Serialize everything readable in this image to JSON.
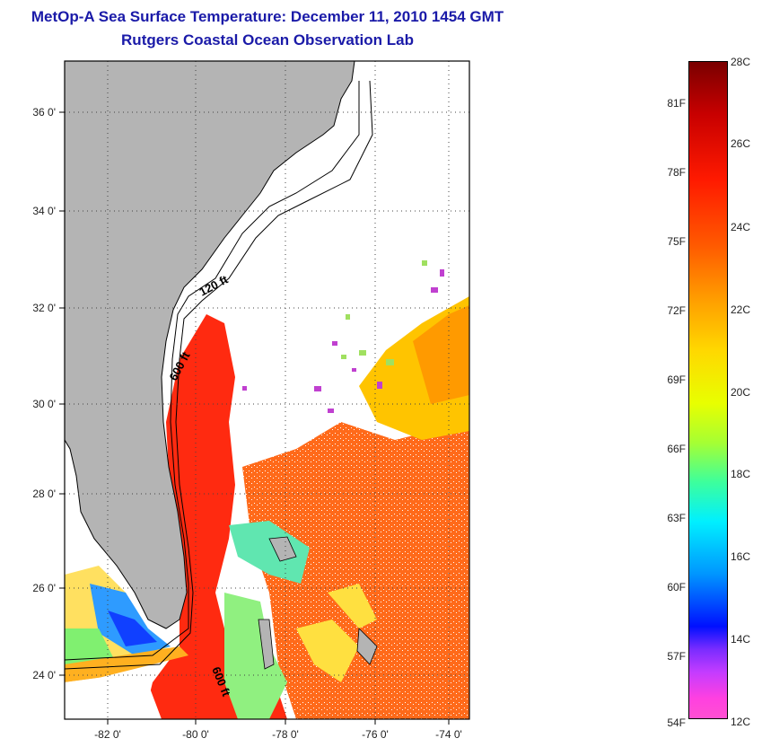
{
  "title": {
    "line1": "MetOp-A Sea Surface Temperature:  December 11, 2010 1454 GMT",
    "line2": "Rutgers Coastal Ocean Observation Lab"
  },
  "map": {
    "lat_labels": [
      "36 0'",
      "34 0'",
      "32 0'",
      "30 0'",
      "28 0'",
      "26 0'",
      "24 0'"
    ],
    "lon_labels": [
      "-82 0'",
      "-80 0'",
      "-78 0'",
      "-76 0'",
      "-74 0'"
    ],
    "isobath_labels": [
      "120 ft",
      "600 ft",
      "600 ft"
    ],
    "colors": {
      "land": "#b4b4b4",
      "ocean_cloud": "#ffffff",
      "gulf_stream": "#ff2a10",
      "warm_sea": "#ff6a1a",
      "mid_sea": "#ffc000",
      "cool_sea": "#7cf060"
    }
  },
  "colorbar": {
    "fahrenheit": [
      "81F",
      "78F",
      "75F",
      "72F",
      "69F",
      "66F",
      "63F",
      "60F",
      "57F",
      "54F"
    ],
    "celsius": [
      "28C",
      "26C",
      "24C",
      "22C",
      "20C",
      "18C",
      "16C",
      "14C",
      "12C"
    ]
  }
}
